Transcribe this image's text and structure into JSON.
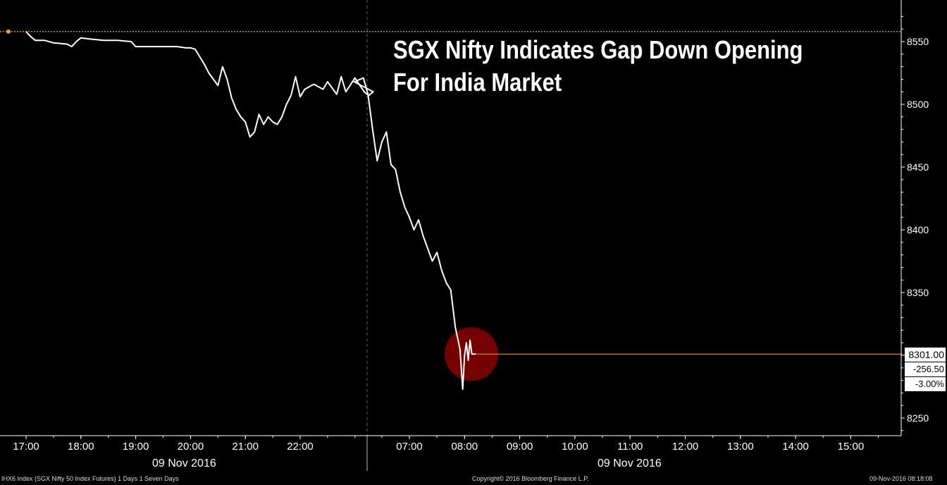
{
  "chart_data": {
    "type": "line",
    "title": "SGX Nifty Indicates Gap Down Opening For India Market",
    "ylim": [
      8240,
      8580
    ],
    "y_ticks": [
      8250,
      8300,
      8350,
      8400,
      8450,
      8500,
      8550
    ],
    "y_tick_labels": [
      "8250",
      "",
      "8350",
      "8400",
      "8450",
      "8500",
      "8550"
    ],
    "x_ticks": [
      "17:00",
      "18:00",
      "19:00",
      "20:00",
      "21:00",
      "22:00",
      "07:00",
      "08:00",
      "09:00",
      "10:00",
      "11:00",
      "12:00",
      "13:00",
      "14:00",
      "15:00"
    ],
    "date_labels": [
      "09 Nov 2016",
      "09 Nov 2016"
    ],
    "session_break_after": "22:00",
    "reference_line": 8558,
    "last_price": "8301.00",
    "net_change": "-256.50",
    "pct_change": "-3.00%",
    "grid": false,
    "colors": {
      "line": "#ffffff",
      "reference": "#e8a33d",
      "highlight": "#8b0000",
      "axis": "#ffffff"
    },
    "series": [
      {
        "name": "",
        "points": [
          [
            "17:00",
            8558
          ],
          [
            "17:05",
            8554
          ],
          [
            "17:10",
            8551
          ],
          [
            "17:20",
            8551
          ],
          [
            "17:30",
            8549
          ],
          [
            "17:45",
            8548
          ],
          [
            "17:50",
            8546
          ],
          [
            "17:55",
            8550
          ],
          [
            "18:00",
            8553
          ],
          [
            "18:10",
            8552
          ],
          [
            "18:25",
            8551
          ],
          [
            "18:40",
            8551
          ],
          [
            "18:55",
            8550
          ],
          [
            "19:00",
            8546
          ],
          [
            "19:15",
            8546
          ],
          [
            "19:30",
            8546
          ],
          [
            "19:45",
            8546
          ],
          [
            "19:55",
            8545
          ],
          [
            "20:00",
            8545
          ],
          [
            "20:05",
            8544
          ],
          [
            "20:10",
            8538
          ],
          [
            "20:15",
            8532
          ],
          [
            "20:20",
            8525
          ],
          [
            "20:25",
            8520
          ],
          [
            "20:30",
            8515
          ],
          [
            "20:35",
            8530
          ],
          [
            "20:40",
            8520
          ],
          [
            "20:45",
            8505
          ],
          [
            "20:50",
            8496
          ],
          [
            "20:55",
            8490
          ],
          [
            "21:00",
            8486
          ],
          [
            "21:05",
            8474
          ],
          [
            "21:10",
            8478
          ],
          [
            "21:15",
            8492
          ],
          [
            "21:20",
            8484
          ],
          [
            "21:25",
            8490
          ],
          [
            "21:30",
            8486
          ],
          [
            "21:35",
            8484
          ],
          [
            "21:40",
            8490
          ],
          [
            "21:45",
            8500
          ],
          [
            "21:50",
            8507
          ],
          [
            "21:55",
            8522
          ],
          [
            "22:00",
            8506
          ],
          [
            "22:05",
            8512
          ],
          [
            "22:15",
            8516
          ],
          [
            "22:25",
            8512
          ],
          [
            "22:30",
            8518
          ],
          [
            "22:40",
            8508
          ],
          [
            "22:45",
            8522
          ],
          [
            "22:50",
            8510
          ],
          [
            "23:00",
            8521
          ],
          [
            "23:10",
            8510
          ],
          [
            "23:15",
            8507
          ],
          [
            "23:20",
            8510
          ],
          [
            "06:00",
            8518
          ],
          [
            "06:10",
            8521
          ],
          [
            "06:15",
            8508
          ],
          [
            "06:20",
            8480
          ],
          [
            "06:25",
            8455
          ],
          [
            "06:30",
            8470
          ],
          [
            "06:35",
            8478
          ],
          [
            "06:40",
            8452
          ],
          [
            "06:45",
            8448
          ],
          [
            "06:50",
            8430
          ],
          [
            "06:55",
            8418
          ],
          [
            "07:00",
            8410
          ],
          [
            "07:05",
            8400
          ],
          [
            "07:10",
            8408
          ],
          [
            "07:15",
            8395
          ],
          [
            "07:20",
            8385
          ],
          [
            "07:25",
            8375
          ],
          [
            "07:30",
            8382
          ],
          [
            "07:35",
            8368
          ],
          [
            "07:40",
            8358
          ],
          [
            "07:45",
            8352
          ],
          [
            "07:50",
            8322
          ],
          [
            "07:55",
            8305
          ],
          [
            "07:58",
            8273
          ],
          [
            "08:00",
            8300
          ],
          [
            "08:02",
            8310
          ],
          [
            "08:04",
            8296
          ],
          [
            "08:06",
            8312
          ],
          [
            "08:08",
            8301
          ],
          [
            "08:12",
            8301
          ]
        ]
      }
    ]
  },
  "footer": {
    "left": "IHX6 Index (SGX Nifty 50 Index Futures) 1 Days 1 Seven Days",
    "center": "Copyright© 2016 Bloomberg Finance L.P.",
    "right": "09-Nov-2016 08:18:08"
  }
}
